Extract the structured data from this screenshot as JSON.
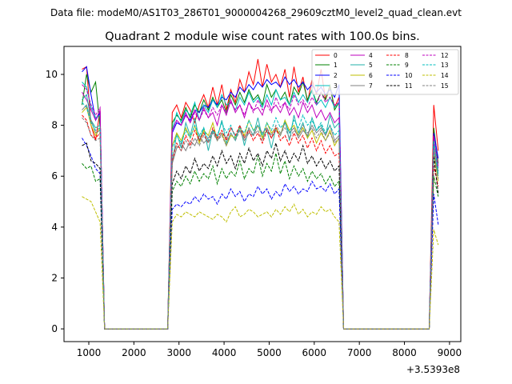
{
  "chart_data": {
    "type": "line",
    "suptitle": "Data file: modeM0/AS1T03_286T01_9000004268_29609cztM0_level2_quad_clean.evt",
    "title": "Quadrant 2 module wise count rates with 100.0s bins.",
    "xlabel": "",
    "ylabel": "",
    "offset_label": "+3.5393e8",
    "xlim": [
      450,
      9250
    ],
    "ylim": [
      -0.5,
      11.1
    ],
    "xticks": [
      1000,
      2000,
      3000,
      4000,
      5000,
      6000,
      7000,
      8000,
      9000
    ],
    "yticks": [
      0,
      2,
      4,
      6,
      8,
      10
    ],
    "x_start": 850,
    "bin": 100,
    "segments": [
      {
        "start": 850,
        "end": 1250
      },
      {
        "start": 2850,
        "end": 6650
      },
      {
        "start": 8650,
        "end": 8850
      }
    ],
    "legend": {
      "location": "top-right",
      "ncol": 4
    },
    "series": [
      {
        "name": "0",
        "color": "#ff0000",
        "dash": false,
        "s1": [
          10.2,
          10.3,
          8.0,
          7.4,
          8.6
        ],
        "s2": [
          8.5,
          8.8,
          8.3,
          8.9,
          8.6,
          8.1,
          8.8,
          9.2,
          8.7,
          9.5,
          8.8,
          9.6,
          8.6,
          9.4,
          8.9,
          9.8,
          9.3,
          10.1,
          9.6,
          10.6,
          9.5,
          10.4,
          9.7,
          10.0,
          9.5,
          10.2,
          9.1,
          10.3,
          9.3,
          9.9,
          8.9,
          9.8,
          9.2,
          10.2,
          9.0,
          9.5,
          8.7,
          9.1
        ],
        "s3": [
          8.8,
          7.0
        ]
      },
      {
        "name": "1",
        "color": "#008000",
        "dash": false,
        "s1": [
          8.8,
          10.0,
          9.3,
          9.7,
          7.9
        ],
        "s2": [
          8.1,
          8.4,
          8.2,
          8.7,
          8.3,
          8.8,
          8.5,
          9.0,
          8.6,
          9.1,
          8.7,
          9.0,
          8.5,
          9.2,
          8.8,
          9.3,
          8.9,
          9.4,
          9.0,
          9.2,
          8.8,
          9.6,
          9.1,
          9.4,
          9.0,
          9.3,
          8.8,
          9.5,
          9.2,
          9.7,
          9.0,
          9.4,
          8.9,
          9.3,
          9.0,
          9.6,
          8.6,
          8.9
        ],
        "s3": [
          7.9,
          6.5
        ]
      },
      {
        "name": "2",
        "color": "#0000ff",
        "dash": false,
        "s1": [
          10.1,
          10.3,
          9.2,
          8.2,
          8.5
        ],
        "s2": [
          7.7,
          8.1,
          8.0,
          8.4,
          8.2,
          8.6,
          8.5,
          8.8,
          8.7,
          9.0,
          8.8,
          9.1,
          9.0,
          9.3,
          9.1,
          9.5,
          9.3,
          9.6,
          9.4,
          9.7,
          9.5,
          9.8,
          9.6,
          9.7,
          9.5,
          9.9,
          9.6,
          9.8,
          9.5,
          9.7,
          9.4,
          9.6,
          9.3,
          9.5,
          9.2,
          9.4,
          9.1,
          9.6
        ],
        "s3": [
          7.7,
          6.7
        ]
      },
      {
        "name": "3",
        "color": "#00bfbf",
        "dash": false,
        "s1": [
          9.7,
          9.5,
          8.7,
          8.3,
          8.4
        ],
        "s2": [
          7.8,
          8.5,
          8.1,
          8.6,
          8.4,
          8.9,
          8.2,
          8.8,
          8.5,
          9.0,
          8.7,
          9.2,
          8.8,
          8.9,
          8.6,
          9.1,
          8.8,
          9.3,
          8.9,
          9.1,
          8.7,
          9.2,
          8.8,
          9.4,
          9.0,
          9.1,
          8.8,
          9.3,
          8.9,
          9.2,
          8.9,
          9.4,
          8.8,
          9.0,
          8.7,
          9.1,
          8.7,
          8.9
        ],
        "s3": [
          7.3,
          6.1
        ]
      },
      {
        "name": "4",
        "color": "#bf00bf",
        "dash": false,
        "s1": [
          9.3,
          9.0,
          8.6,
          8.2,
          8.6
        ],
        "s2": [
          7.8,
          8.2,
          8.0,
          8.5,
          8.1,
          8.6,
          8.2,
          8.7,
          8.3,
          8.5,
          8.0,
          8.8,
          8.4,
          9.0,
          8.5,
          8.8,
          8.3,
          8.9,
          8.6,
          8.7,
          8.4,
          9.0,
          8.6,
          8.8,
          8.5,
          8.9,
          8.4,
          8.7,
          8.3,
          8.9,
          8.5,
          8.8,
          8.3,
          8.6,
          8.2,
          8.5,
          8.1,
          8.3
        ],
        "s3": [
          7.5,
          6.4
        ]
      },
      {
        "name": "5",
        "color": "#20b2aa",
        "dash": false,
        "s1": [
          9.0,
          9.2,
          8.2,
          7.9,
          8.0
        ],
        "s2": [
          6.5,
          7.7,
          7.1,
          8.1,
          7.6,
          8.3,
          7.4,
          7.9,
          7.0,
          7.8,
          7.5,
          8.2,
          7.3,
          7.7,
          7.4,
          8.0,
          7.2,
          7.9,
          7.6,
          8.3,
          7.5,
          7.8,
          7.1,
          7.9,
          7.6,
          8.2,
          7.4,
          8.4,
          7.7,
          8.1,
          7.5,
          8.3,
          7.8,
          8.0,
          7.6,
          8.4,
          7.9,
          8.1
        ],
        "s3": [
          7.0,
          6.0
        ]
      },
      {
        "name": "6",
        "color": "#bfbf00",
        "dash": false,
        "s1": [
          8.5,
          8.7,
          8.0,
          7.6,
          7.9
        ],
        "s2": [
          7.2,
          7.7,
          7.4,
          7.9,
          7.5,
          8.0,
          7.3,
          7.8,
          7.6,
          8.1,
          7.4,
          7.7,
          7.2,
          7.6,
          7.5,
          7.9,
          7.6,
          8.2,
          7.8,
          8.0,
          7.5,
          8.1,
          7.7,
          7.9,
          7.6,
          8.2,
          7.8,
          8.0,
          7.6,
          7.9,
          7.5,
          7.8,
          7.3,
          7.7,
          7.4,
          7.8,
          7.2,
          7.5
        ],
        "s3": [
          6.9,
          5.8
        ]
      },
      {
        "name": "7",
        "color": "#808080",
        "dash": false,
        "s1": [
          8.6,
          8.8,
          8.2,
          7.7,
          7.8
        ],
        "s2": [
          6.5,
          7.1,
          7.3,
          7.0,
          7.4,
          7.2,
          7.6,
          7.3,
          7.5,
          7.8,
          7.4,
          7.7,
          7.5,
          7.9,
          7.6,
          7.8,
          7.4,
          7.7,
          7.6,
          8.0,
          7.7,
          7.9,
          7.5,
          7.8,
          7.6,
          8.1,
          7.7,
          7.9,
          7.5,
          7.8,
          7.6,
          8.0,
          7.7,
          7.9,
          7.6,
          8.0,
          7.4,
          7.6
        ],
        "s3": [
          7.2,
          6.2
        ]
      },
      {
        "name": "8",
        "color": "#ff0000",
        "dash": true,
        "s1": [
          8.4,
          8.2,
          7.6,
          7.5,
          7.7
        ],
        "s2": [
          6.6,
          7.3,
          7.0,
          7.6,
          7.2,
          7.8,
          7.4,
          7.7,
          7.3,
          7.9,
          7.5,
          7.8,
          7.4,
          7.9,
          7.6,
          8.0,
          7.5,
          7.8,
          7.4,
          7.7,
          7.3,
          7.8,
          7.5,
          7.9,
          7.4,
          7.6,
          7.2,
          7.7,
          7.3,
          7.6,
          7.1,
          7.5,
          7.0,
          7.4,
          6.9,
          7.2,
          6.8,
          6.9
        ],
        "s3": [
          6.4,
          5.6
        ]
      },
      {
        "name": "9",
        "color": "#008000",
        "dash": true,
        "s1": [
          6.5,
          6.3,
          6.4,
          5.8,
          5.9
        ],
        "s2": [
          5.4,
          5.8,
          5.6,
          6.0,
          5.7,
          6.2,
          5.8,
          6.1,
          5.9,
          6.4,
          5.7,
          6.3,
          5.9,
          6.2,
          6.0,
          6.6,
          5.9,
          6.3,
          6.1,
          6.8,
          6.0,
          6.5,
          6.2,
          6.9,
          6.1,
          6.6,
          5.9,
          6.4,
          6.0,
          6.3,
          5.8,
          6.2,
          5.9,
          6.1,
          5.7,
          6.0,
          5.6,
          5.8
        ],
        "s3": [
          6.0,
          5.2
        ]
      },
      {
        "name": "10",
        "color": "#0000ff",
        "dash": true,
        "s1": [
          7.5,
          7.2,
          6.8,
          6.3,
          6.1
        ],
        "s2": [
          4.7,
          4.9,
          4.8,
          5.0,
          4.9,
          5.2,
          5.0,
          5.3,
          5.1,
          5.2,
          4.9,
          5.3,
          5.1,
          5.5,
          5.2,
          5.4,
          5.0,
          5.3,
          5.2,
          5.6,
          5.3,
          5.5,
          5.1,
          5.4,
          5.2,
          5.7,
          5.4,
          5.6,
          5.3,
          5.5,
          5.4,
          5.8,
          5.5,
          5.6,
          5.4,
          5.7,
          5.3,
          5.5
        ],
        "s3": [
          5.3,
          4.1
        ]
      },
      {
        "name": "11",
        "color": "#000000",
        "dash": true,
        "s1": [
          7.2,
          7.3,
          6.6,
          6.5,
          6.3
        ],
        "s2": [
          5.7,
          6.2,
          5.9,
          6.4,
          6.1,
          6.7,
          6.2,
          6.5,
          6.3,
          6.8,
          6.4,
          7.0,
          6.5,
          6.8,
          6.3,
          6.9,
          6.5,
          7.1,
          6.6,
          6.9,
          6.4,
          7.0,
          6.7,
          7.3,
          6.6,
          7.0,
          6.5,
          6.9,
          6.6,
          7.2,
          6.5,
          6.8,
          6.4,
          6.7,
          6.3,
          6.6,
          6.2,
          6.4
        ],
        "s3": [
          6.8,
          5.3
        ]
      },
      {
        "name": "12",
        "color": "#bf00bf",
        "dash": true,
        "s1": [
          9.6,
          9.4,
          8.8,
          8.4,
          8.7
        ],
        "s2": [
          7.8,
          8.2,
          8.0,
          8.4,
          8.1,
          8.5,
          8.2,
          8.6,
          8.3,
          8.7,
          8.4,
          8.8,
          8.5,
          8.9,
          8.6,
          8.8,
          8.4,
          8.9,
          8.5,
          9.0,
          8.6,
          8.8,
          8.5,
          9.1,
          8.7,
          8.9,
          8.6,
          9.2,
          8.8,
          9.0,
          8.7,
          9.1,
          8.8,
          9.3,
          8.9,
          9.1,
          8.8,
          8.9
        ],
        "s3": [
          7.6,
          6.3
        ]
      },
      {
        "name": "13",
        "color": "#00bfbf",
        "dash": true,
        "s1": [
          8.9,
          8.7,
          8.1,
          7.8,
          7.9
        ],
        "s2": [
          7.1,
          7.6,
          7.3,
          7.8,
          7.5,
          8.0,
          7.6,
          7.9,
          7.4,
          7.8,
          7.6,
          8.1,
          7.7,
          8.0,
          7.5,
          7.9,
          7.7,
          8.2,
          7.8,
          8.0,
          7.6,
          8.1,
          7.8,
          8.3,
          7.9,
          8.1,
          7.7,
          8.2,
          7.9,
          8.4,
          8.0,
          8.2,
          7.8,
          8.1,
          7.7,
          8.0,
          7.6,
          7.8
        ],
        "s3": [
          7.4,
          6.2
        ]
      },
      {
        "name": "14",
        "color": "#bfbf00",
        "dash": true,
        "s1": [
          5.2,
          5.1,
          5.0,
          4.6,
          4.2
        ],
        "s2": [
          4.2,
          4.5,
          4.4,
          4.6,
          4.5,
          4.4,
          4.6,
          4.5,
          4.4,
          4.3,
          4.5,
          4.4,
          4.2,
          4.6,
          4.8,
          4.4,
          4.5,
          4.7,
          4.6,
          4.4,
          4.5,
          4.6,
          4.4,
          4.7,
          4.5,
          4.8,
          4.6,
          4.9,
          4.5,
          4.7,
          4.4,
          4.6,
          4.5,
          4.8,
          4.6,
          4.7,
          4.4,
          4.2
        ],
        "s3": [
          3.9,
          3.3
        ]
      },
      {
        "name": "15",
        "color": "#808080",
        "dash": true,
        "s1": [
          8.3,
          8.1,
          7.6,
          7.4,
          7.5
        ],
        "s2": [
          6.8,
          7.2,
          7.0,
          7.4,
          7.1,
          7.5,
          7.2,
          7.6,
          7.3,
          7.7,
          7.4,
          7.6,
          7.2,
          7.7,
          7.4,
          7.8,
          7.5,
          7.9,
          7.6,
          7.8,
          7.4,
          7.9,
          7.6,
          8.0,
          7.7,
          7.9,
          7.5,
          7.8,
          7.6,
          8.0,
          7.7,
          7.9,
          7.5,
          7.8,
          7.4,
          7.7,
          7.3,
          7.5
        ],
        "s3": [
          7.0,
          5.9
        ]
      }
    ]
  }
}
